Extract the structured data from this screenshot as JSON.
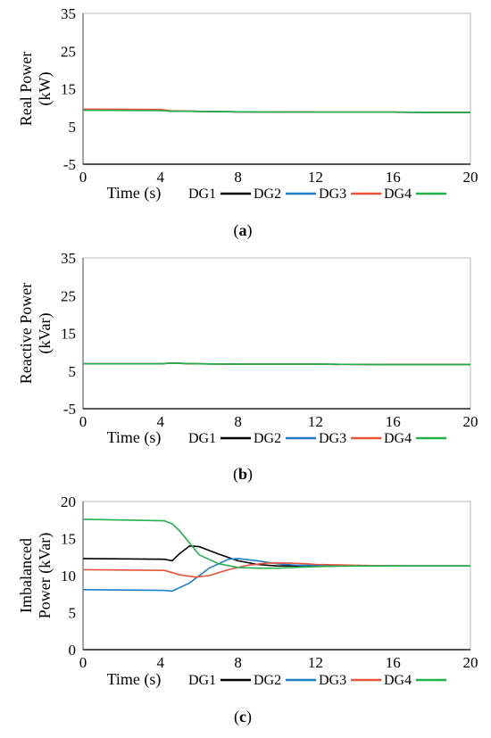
{
  "figure": {
    "legend_entries": [
      "DG1",
      "DG2",
      "DG3",
      "DG4"
    ],
    "colors": {
      "DG1": "#000000",
      "DG2": "#1f7fc4",
      "DG3": "#e8543a",
      "DG4": "#22b14c"
    }
  },
  "chart_data": [
    {
      "type": "line",
      "panel_label": "a",
      "ylabel": [
        "Real Power",
        "(kW)"
      ],
      "xlabel": "Time (s)",
      "xlim": [
        0,
        20
      ],
      "ylim": [
        -5,
        35
      ],
      "xticks": [
        "0",
        "4",
        "8",
        "12",
        "16",
        "20"
      ],
      "yticks": [
        "-5",
        "5",
        "15",
        "25",
        "35"
      ],
      "grid": false,
      "legend": "bottom",
      "series": [
        {
          "name": "DG1",
          "color": "#000000",
          "x": [
            0,
            4,
            4.5,
            6,
            8,
            12,
            16,
            20
          ],
          "y": [
            9.4,
            9.3,
            9.1,
            9.0,
            8.9,
            8.8,
            8.8,
            8.7
          ]
        },
        {
          "name": "DG2",
          "color": "#1f7fc4",
          "x": [
            0,
            4,
            4.5,
            6,
            8,
            12,
            16,
            20
          ],
          "y": [
            9.4,
            9.3,
            9.1,
            9.0,
            8.9,
            8.8,
            8.8,
            8.7
          ]
        },
        {
          "name": "DG3",
          "color": "#e8543a",
          "x": [
            0,
            4,
            4.5,
            6,
            8,
            12,
            16,
            20
          ],
          "y": [
            9.6,
            9.5,
            9.2,
            9.0,
            8.9,
            8.8,
            8.8,
            8.7
          ]
        },
        {
          "name": "DG4",
          "color": "#22b14c",
          "x": [
            0,
            4,
            4.5,
            6,
            8,
            12,
            16,
            20
          ],
          "y": [
            9.3,
            9.2,
            9.1,
            9.0,
            8.9,
            8.8,
            8.8,
            8.7
          ]
        }
      ]
    },
    {
      "type": "line",
      "panel_label": "b",
      "ylabel": [
        "Reactive Power",
        "(kVar)"
      ],
      "xlabel": "Time (s)",
      "xlim": [
        0,
        20
      ],
      "ylim": [
        -5,
        35
      ],
      "xticks": [
        "0",
        "4",
        "8",
        "12",
        "16",
        "20"
      ],
      "yticks": [
        "-5",
        "5",
        "15",
        "25",
        "35"
      ],
      "grid": false,
      "legend": "bottom",
      "series": [
        {
          "name": "DG1",
          "color": "#000000",
          "x": [
            0,
            4,
            4.5,
            6,
            8,
            12,
            16,
            20
          ],
          "y": [
            6.9,
            6.9,
            7.1,
            6.9,
            6.8,
            6.8,
            6.7,
            6.7
          ]
        },
        {
          "name": "DG2",
          "color": "#1f7fc4",
          "x": [
            0,
            4,
            4.5,
            6,
            8,
            12,
            16,
            20
          ],
          "y": [
            6.9,
            6.9,
            7.1,
            6.9,
            6.8,
            6.8,
            6.7,
            6.7
          ]
        },
        {
          "name": "DG3",
          "color": "#e8543a",
          "x": [
            0,
            4,
            4.5,
            6,
            8,
            12,
            16,
            20
          ],
          "y": [
            6.9,
            6.9,
            7.1,
            6.9,
            6.8,
            6.8,
            6.7,
            6.7
          ]
        },
        {
          "name": "DG4",
          "color": "#22b14c",
          "x": [
            0,
            4,
            4.5,
            6,
            8,
            12,
            16,
            20
          ],
          "y": [
            6.9,
            6.9,
            7.1,
            6.9,
            6.8,
            6.8,
            6.7,
            6.7
          ]
        }
      ]
    },
    {
      "type": "line",
      "panel_label": "c",
      "ylabel": [
        "Imbalanced",
        "Power (kVar)"
      ],
      "xlabel": "Time (s)",
      "xlim": [
        0,
        20
      ],
      "ylim": [
        0,
        20
      ],
      "xticks": [
        "0",
        "4",
        "8",
        "12",
        "16",
        "20"
      ],
      "yticks": [
        "0",
        "5",
        "10",
        "15",
        "20"
      ],
      "grid": false,
      "legend": "bottom",
      "series": [
        {
          "name": "DG1",
          "color": "#000000",
          "x": [
            0,
            4.2,
            4.6,
            5.0,
            5.5,
            6.0,
            7.0,
            8.0,
            9.0,
            10.0,
            11.0,
            12.0,
            14.0,
            16.0,
            20.0
          ],
          "y": [
            12.3,
            12.2,
            12.0,
            13.0,
            14.0,
            13.9,
            12.9,
            12.0,
            11.5,
            11.3,
            11.3,
            11.4,
            11.3,
            11.3,
            11.3
          ]
        },
        {
          "name": "DG2",
          "color": "#1f7fc4",
          "x": [
            0,
            4.2,
            4.6,
            5.5,
            6.5,
            7.5,
            8.0,
            9.0,
            10.0,
            11.0,
            12.0,
            14.0,
            16.0,
            20.0
          ],
          "y": [
            8.1,
            8.0,
            7.9,
            9.0,
            11.0,
            12.2,
            12.3,
            12.0,
            11.6,
            11.4,
            11.4,
            11.3,
            11.3,
            11.3
          ]
        },
        {
          "name": "DG3",
          "color": "#e8543a",
          "x": [
            0,
            4.2,
            5.0,
            5.8,
            6.5,
            7.5,
            8.5,
            9.5,
            10.5,
            11.5,
            12.0,
            14.0,
            16.0,
            20.0
          ],
          "y": [
            10.8,
            10.7,
            10.1,
            9.8,
            10.0,
            10.8,
            11.4,
            11.7,
            11.7,
            11.6,
            11.5,
            11.4,
            11.3,
            11.3
          ]
        },
        {
          "name": "DG4",
          "color": "#22b14c",
          "x": [
            0,
            4.2,
            4.6,
            5.0,
            5.5,
            6.0,
            7.0,
            8.0,
            9.0,
            10.0,
            12.0,
            14.0,
            16.0,
            20.0
          ],
          "y": [
            17.6,
            17.4,
            17.0,
            16.0,
            14.4,
            12.8,
            11.6,
            11.1,
            11.0,
            11.0,
            11.2,
            11.3,
            11.3,
            11.3
          ]
        }
      ]
    }
  ]
}
